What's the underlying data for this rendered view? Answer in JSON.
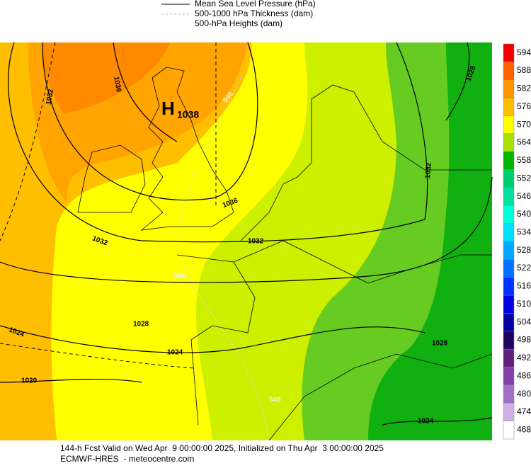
{
  "legend": {
    "items": [
      "Mean Sea Level Pressure (hPa)",
      "500-1000 hPa Thickness (dam)",
      "500-hPa Heights (dam)"
    ]
  },
  "map": {
    "high_label": "H",
    "contour_labels": [
      "1038",
      "1036",
      "1032",
      "1036",
      "1032",
      "1032",
      "1028",
      "1024",
      "1024",
      "1020",
      "1032",
      "1028",
      "1028",
      "1024",
      "546",
      "546",
      "546"
    ]
  },
  "colorbar": [
    {
      "label": "594",
      "color": "#f00000"
    },
    {
      "label": "588",
      "color": "#ff6400"
    },
    {
      "label": "582",
      "color": "#ff9600"
    },
    {
      "label": "576",
      "color": "#ffbe00"
    },
    {
      "label": "570",
      "color": "#ffff00"
    },
    {
      "label": "564",
      "color": "#a8e000"
    },
    {
      "label": "558",
      "color": "#00b400"
    },
    {
      "label": "552",
      "color": "#00cc70"
    },
    {
      "label": "546",
      "color": "#00e0a0"
    },
    {
      "label": "540",
      "color": "#00ffd8"
    },
    {
      "label": "534",
      "color": "#00e0ff"
    },
    {
      "label": "528",
      "color": "#00a8ff"
    },
    {
      "label": "522",
      "color": "#0070ff"
    },
    {
      "label": "516",
      "color": "#0030ff"
    },
    {
      "label": "510",
      "color": "#0000e0"
    },
    {
      "label": "504",
      "color": "#0000a0"
    },
    {
      "label": "498",
      "color": "#200060"
    },
    {
      "label": "492",
      "color": "#602080"
    },
    {
      "label": "486",
      "color": "#8040a8"
    },
    {
      "label": "480",
      "color": "#a070c8"
    },
    {
      "label": "474",
      "color": "#d0b0e0"
    },
    {
      "label": "468",
      "color": "#ffffff"
    }
  ],
  "footer": {
    "line1": "144-h Fcst Valid on Wed Apr  9 00:00:00 2025, Initialized on Thu Apr  3 00:00:00 2025",
    "line2": "ECMWF-HRES  - meteocentre.com"
  }
}
